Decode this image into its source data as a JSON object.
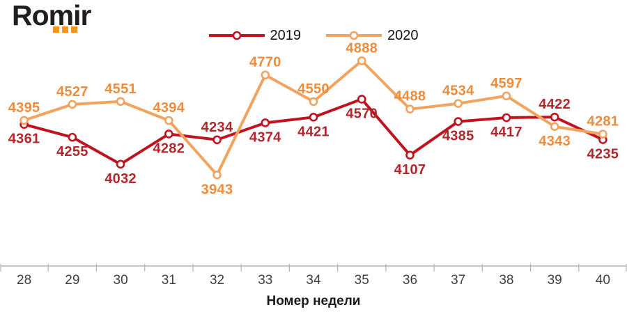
{
  "logo": {
    "text": "Romir",
    "text_color": "#221E1F",
    "dot_color": "#F7941E"
  },
  "chart_data": {
    "type": "line",
    "title": "",
    "xlabel": "Номер недели",
    "ylabel": "",
    "categories": [
      "28",
      "29",
      "30",
      "31",
      "32",
      "33",
      "34",
      "35",
      "36",
      "37",
      "38",
      "39",
      "40"
    ],
    "series": [
      {
        "name": "2019",
        "values": [
          4361,
          4255,
          4032,
          4282,
          4234,
          4374,
          4421,
          4570,
          4107,
          4385,
          4417,
          4422,
          4235
        ],
        "line_color": "#BF1420",
        "label_color": "#B3262B",
        "label_positions": [
          "below",
          "below",
          "below",
          "below",
          "above",
          "below",
          "below",
          "below",
          "below",
          "below",
          "below",
          "above",
          "below"
        ]
      },
      {
        "name": "2020",
        "values": [
          4395,
          4527,
          4551,
          4394,
          3943,
          4770,
          4550,
          4888,
          4488,
          4534,
          4597,
          4343,
          4281
        ],
        "line_color": "#F2A35F",
        "label_color": "#EF8C3C",
        "label_positions": [
          "above",
          "above",
          "above",
          "above",
          "below",
          "above",
          "above",
          "above",
          "above",
          "above",
          "above",
          "below",
          "above"
        ]
      }
    ],
    "ylim": [
      3190,
      5045
    ],
    "grid": false,
    "legend_position": "top-center",
    "marker_fill": "#FFFFFF",
    "axis_color": "#B4B4B4",
    "tick_label_color": "#404040",
    "axis_title_color": "#1A1A1A",
    "legend_text_color": "#111111"
  }
}
